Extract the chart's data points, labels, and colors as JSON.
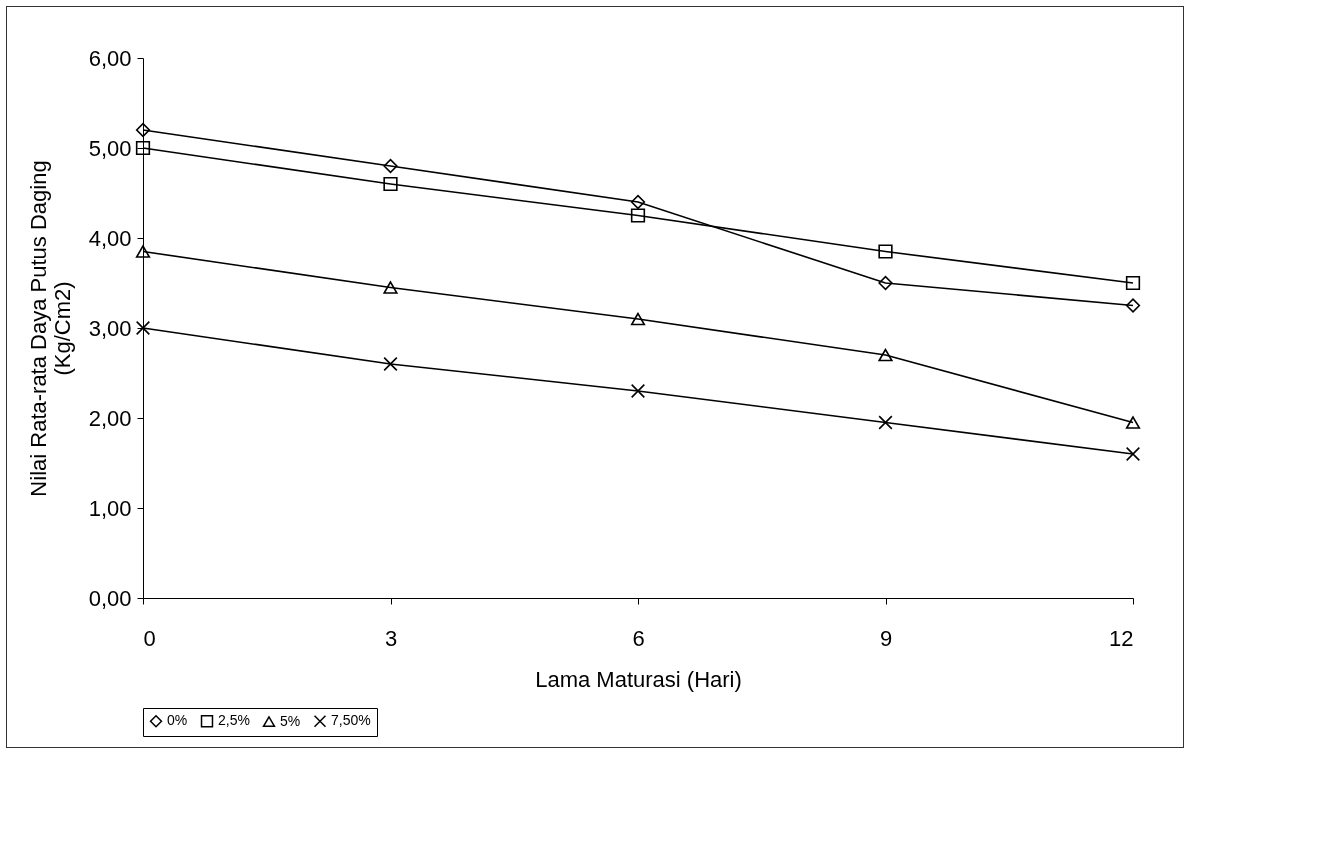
{
  "chart_data": {
    "type": "line",
    "xlabel": "Lama Maturasi (Hari)",
    "ylabel": "Nilai Rata-rata Daya Putus Daging (Kg/Cm2)",
    "x": [
      0,
      3,
      6,
      9,
      12
    ],
    "series": [
      {
        "name": "0%",
        "color": "#000000",
        "marker": "diamond",
        "values": [
          5.2,
          4.8,
          4.4,
          3.5,
          3.25
        ]
      },
      {
        "name": "2,5%",
        "color": "#000000",
        "marker": "square",
        "values": [
          5.0,
          4.6,
          4.25,
          3.85,
          3.5
        ]
      },
      {
        "name": "5%",
        "color": "#000000",
        "marker": "triangle",
        "values": [
          3.85,
          3.45,
          3.1,
          2.7,
          1.95
        ]
      },
      {
        "name": "7,50%",
        "color": "#000000",
        "marker": "cross",
        "values": [
          3.0,
          2.6,
          2.3,
          1.95,
          1.6
        ]
      }
    ],
    "xlim": [
      0,
      12
    ],
    "xticks": [
      0,
      3,
      6,
      9,
      12
    ],
    "ylim": [
      0,
      6
    ],
    "yticks": [
      {
        "value": 0,
        "label": "0,00"
      },
      {
        "value": 1,
        "label": "1,00"
      },
      {
        "value": 2,
        "label": "2,00"
      },
      {
        "value": 3,
        "label": "3,00"
      },
      {
        "value": 4,
        "label": "4,00"
      },
      {
        "value": 5,
        "label": "5,00"
      },
      {
        "value": 6,
        "label": "6,00"
      }
    ],
    "grid": false,
    "legend": "bottom",
    "line_style": "solid"
  }
}
